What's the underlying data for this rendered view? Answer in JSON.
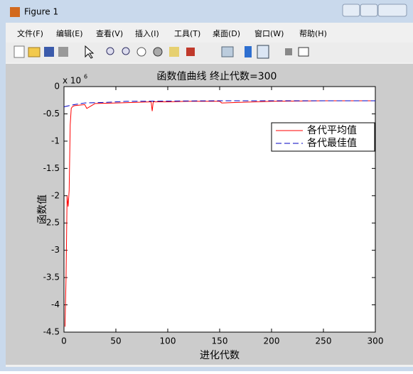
{
  "window": {
    "title": "Figure 1",
    "menu": [
      "文件(F)",
      "编辑(E)",
      "查看(V)",
      "插入(I)",
      "工具(T)",
      "桌面(D)",
      "窗口(W)",
      "帮助(H)"
    ]
  },
  "chart_data": {
    "type": "line",
    "title": "函数值曲线 终止代数=300",
    "x_label": "进化代数",
    "y_label": "函数值",
    "y_multiplier": {
      "base": "x 10",
      "exponent": "6"
    },
    "xlim": [
      0,
      300
    ],
    "xticks": [
      0,
      50,
      100,
      150,
      200,
      250,
      300
    ],
    "ylim": [
      -4.5,
      0
    ],
    "yticks": [
      0,
      -0.5,
      -1,
      -1.5,
      -2,
      -2.5,
      -3,
      -3.5,
      -4,
      -4.5
    ],
    "legend_position": "upper right",
    "series": [
      {
        "name": "各代平均值",
        "color": "#ff0000",
        "dash": "solid",
        "x": [
          1,
          2,
          3,
          4,
          5,
          6,
          7,
          8,
          10,
          15,
          20,
          22,
          30,
          50,
          70,
          84,
          85,
          86,
          100,
          120,
          150,
          152,
          200,
          250,
          300
        ],
        "values": [
          -4.4,
          -3.5,
          -2.0,
          -2.2,
          -1.9,
          -0.7,
          -0.4,
          -0.37,
          -0.35,
          -0.34,
          -0.33,
          -0.4,
          -0.31,
          -0.3,
          -0.29,
          -0.28,
          -0.45,
          -0.28,
          -0.28,
          -0.27,
          -0.27,
          -0.3,
          -0.27,
          -0.26,
          -0.26
        ]
      },
      {
        "name": "各代最佳值",
        "color": "#0000c0",
        "dash": "dashed",
        "x": [
          0,
          5,
          10,
          20,
          40,
          60,
          100,
          150,
          200,
          300
        ],
        "values": [
          -0.37,
          -0.35,
          -0.33,
          -0.3,
          -0.29,
          -0.27,
          -0.265,
          -0.26,
          -0.26,
          -0.26
        ]
      }
    ]
  }
}
